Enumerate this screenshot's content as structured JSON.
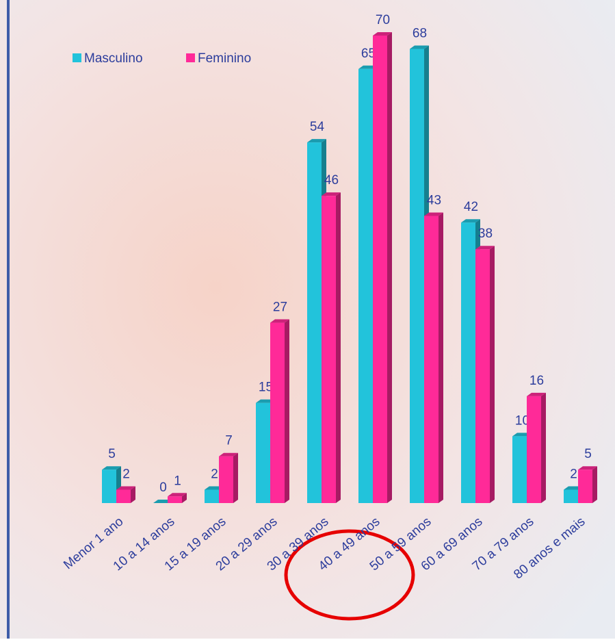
{
  "chart_data": {
    "type": "bar",
    "categories": [
      "Menor 1 ano",
      "10 a 14 anos",
      "15 a 19 anos",
      "20 a 29 anos",
      "30 a 39 anos",
      "40 a 49 anos",
      "50 a 59 anos",
      "60 a 69 anos",
      "70 a 79 anos",
      "80 anos e mais"
    ],
    "series": [
      {
        "name": "Masculino",
        "color": "#22c3db",
        "values": [
          5,
          0,
          2,
          15,
          54,
          65,
          68,
          42,
          10,
          2
        ]
      },
      {
        "name": "Feminino",
        "color": "#ff2a98",
        "values": [
          2,
          1,
          7,
          27,
          46,
          70,
          43,
          38,
          16,
          5
        ]
      }
    ]
  }
}
